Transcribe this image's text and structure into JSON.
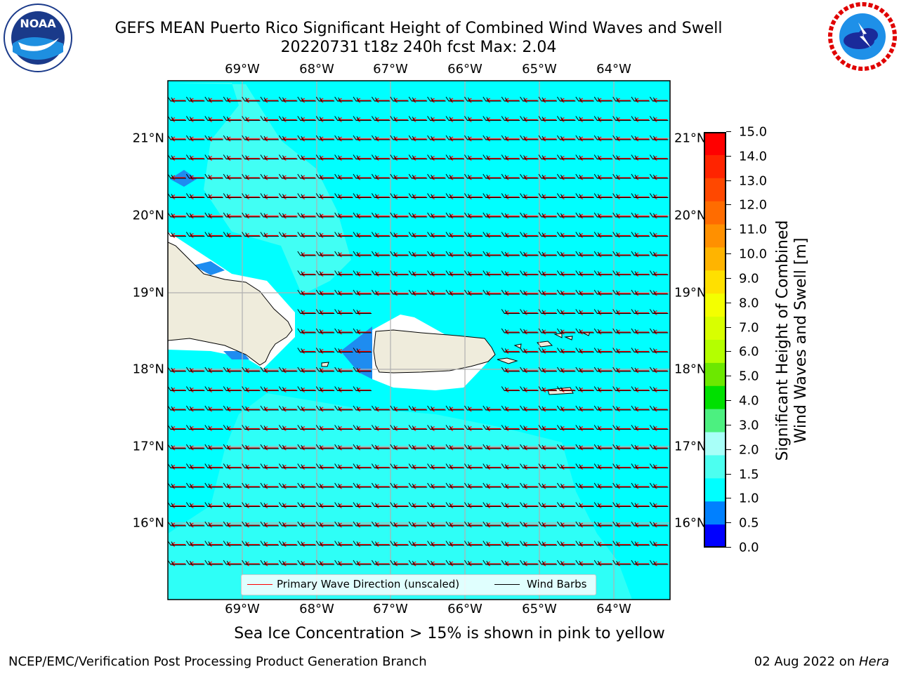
{
  "title_line1": "GEFS MEAN Puerto Rico Significant Height of Combined Wind Waves and Swell",
  "title_line2": "20220731 t18z 240h fcst   Max: 2.04",
  "lon_labels": [
    "69°W",
    "68°W",
    "67°W",
    "66°W",
    "65°W",
    "64°W"
  ],
  "lat_labels": [
    "21°N",
    "20°N",
    "19°N",
    "18°N",
    "17°N",
    "16°N"
  ],
  "colorbar": {
    "title_line1": "Significant Height of Combined",
    "title_line2": "Wind Waves and Swell [m]",
    "tick_labels": [
      "15.0",
      "14.0",
      "13.0",
      "12.0",
      "11.0",
      "10.0",
      "9.0",
      "8.0",
      "7.0",
      "6.0",
      "5.0",
      "4.0",
      "3.0",
      "2.0",
      "1.5",
      "1.0",
      "0.5",
      "0.0"
    ],
    "colors": [
      "#ff0000",
      "#ff2400",
      "#ff4800",
      "#ff6c00",
      "#ff9000",
      "#ffb400",
      "#ffe000",
      "#f4ff00",
      "#d8ff00",
      "#b4ff00",
      "#6ce800",
      "#00e000",
      "#4cf080",
      "#a8fff8",
      "#4cfff0",
      "#00ffff",
      "#0080ff",
      "#0000ff"
    ]
  },
  "legend": {
    "wave_label": "Primary Wave Direction (unscaled)",
    "wind_label": "Wind Barbs",
    "wave_color": "#ff0000",
    "wind_color": "#000000"
  },
  "sea_ice_note": "Sea Ice Concentration > 15% is shown in pink to yellow",
  "footer_left": "NCEP/EMC/Verification Post Processing Product Generation Branch",
  "footer_date": "02 Aug 2022 on ",
  "footer_host": "Hera",
  "logos": {
    "left": "noaa-logo",
    "right": "nws-logo",
    "noaa_text": "NOAA"
  }
}
